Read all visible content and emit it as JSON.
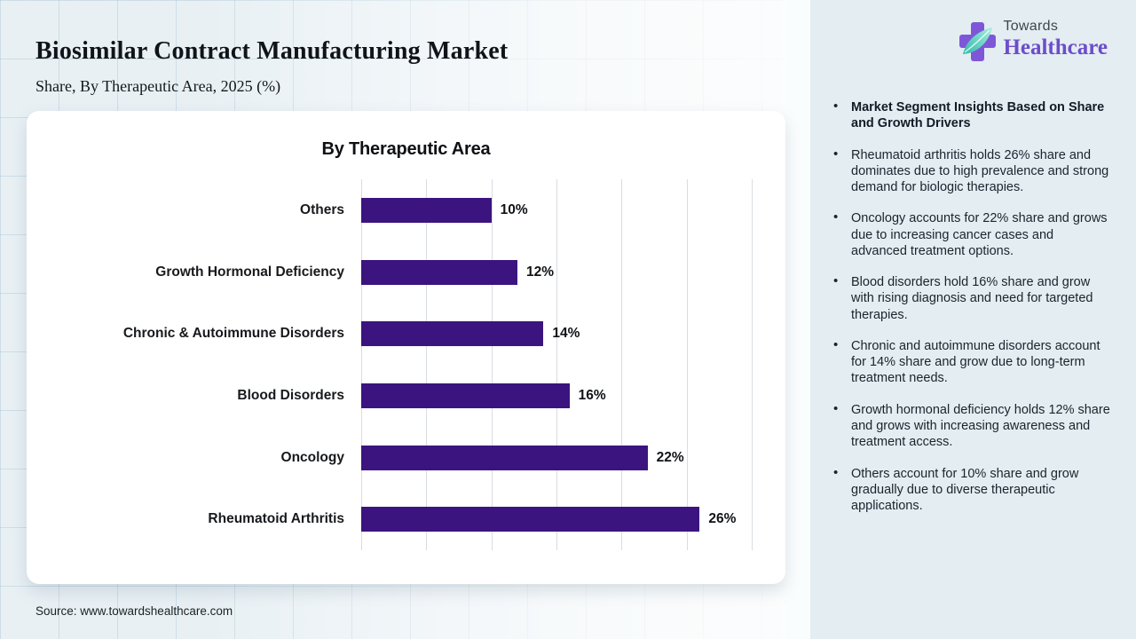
{
  "header": {
    "title": "Biosimilar Contract Manufacturing Market",
    "subtitle": "Share, By Therapeutic Area, 2025 (%)"
  },
  "logo": {
    "top": "Towards",
    "bottom": "Healthcare"
  },
  "chart_data": {
    "type": "bar",
    "orientation": "horizontal",
    "title": "By Therapeutic Area",
    "categories": [
      "Others",
      "Growth Hormonal Deficiency",
      "Chronic & Autoimmune Disorders",
      "Blood Disorders",
      "Oncology",
      "Rheumatoid Arthritis"
    ],
    "values": [
      10,
      12,
      14,
      16,
      22,
      26
    ],
    "value_labels": [
      "10%",
      "12%",
      "14%",
      "16%",
      "22%",
      "26%"
    ],
    "xlim": [
      0,
      30
    ],
    "gridline_step": 5,
    "grid": true,
    "legend": false,
    "bar_color": "#3c147f"
  },
  "insights": {
    "items": [
      {
        "text": "Market Segment Insights Based on Share and Growth Drivers",
        "bold": true
      },
      {
        "text": "Rheumatoid arthritis holds 26% share and dominates due to high prevalence and strong demand for biologic therapies."
      },
      {
        "text": "Oncology accounts for 22% share and grows due to increasing cancer cases and advanced treatment options."
      },
      {
        "text": "Blood disorders hold 16% share and grow with rising diagnosis and need for targeted therapies."
      },
      {
        "text": "Chronic and autoimmune disorders account for 14% share and grow due to long-term treatment needs."
      },
      {
        "text": "Growth hormonal deficiency holds 12% share and grows with increasing awareness and treatment access."
      },
      {
        "text": "Others account for 10% share and grow gradually due to diverse therapeutic applications."
      }
    ]
  },
  "source": "Source: www.towardshealthcare.com",
  "colors": {
    "bar": "#3c147f",
    "logo_purple": "#7e57d8",
    "logo_text_purple": "#6b4ec9",
    "leaf_teal": "#38c4b4",
    "panel_bg": "#e4edf2"
  }
}
